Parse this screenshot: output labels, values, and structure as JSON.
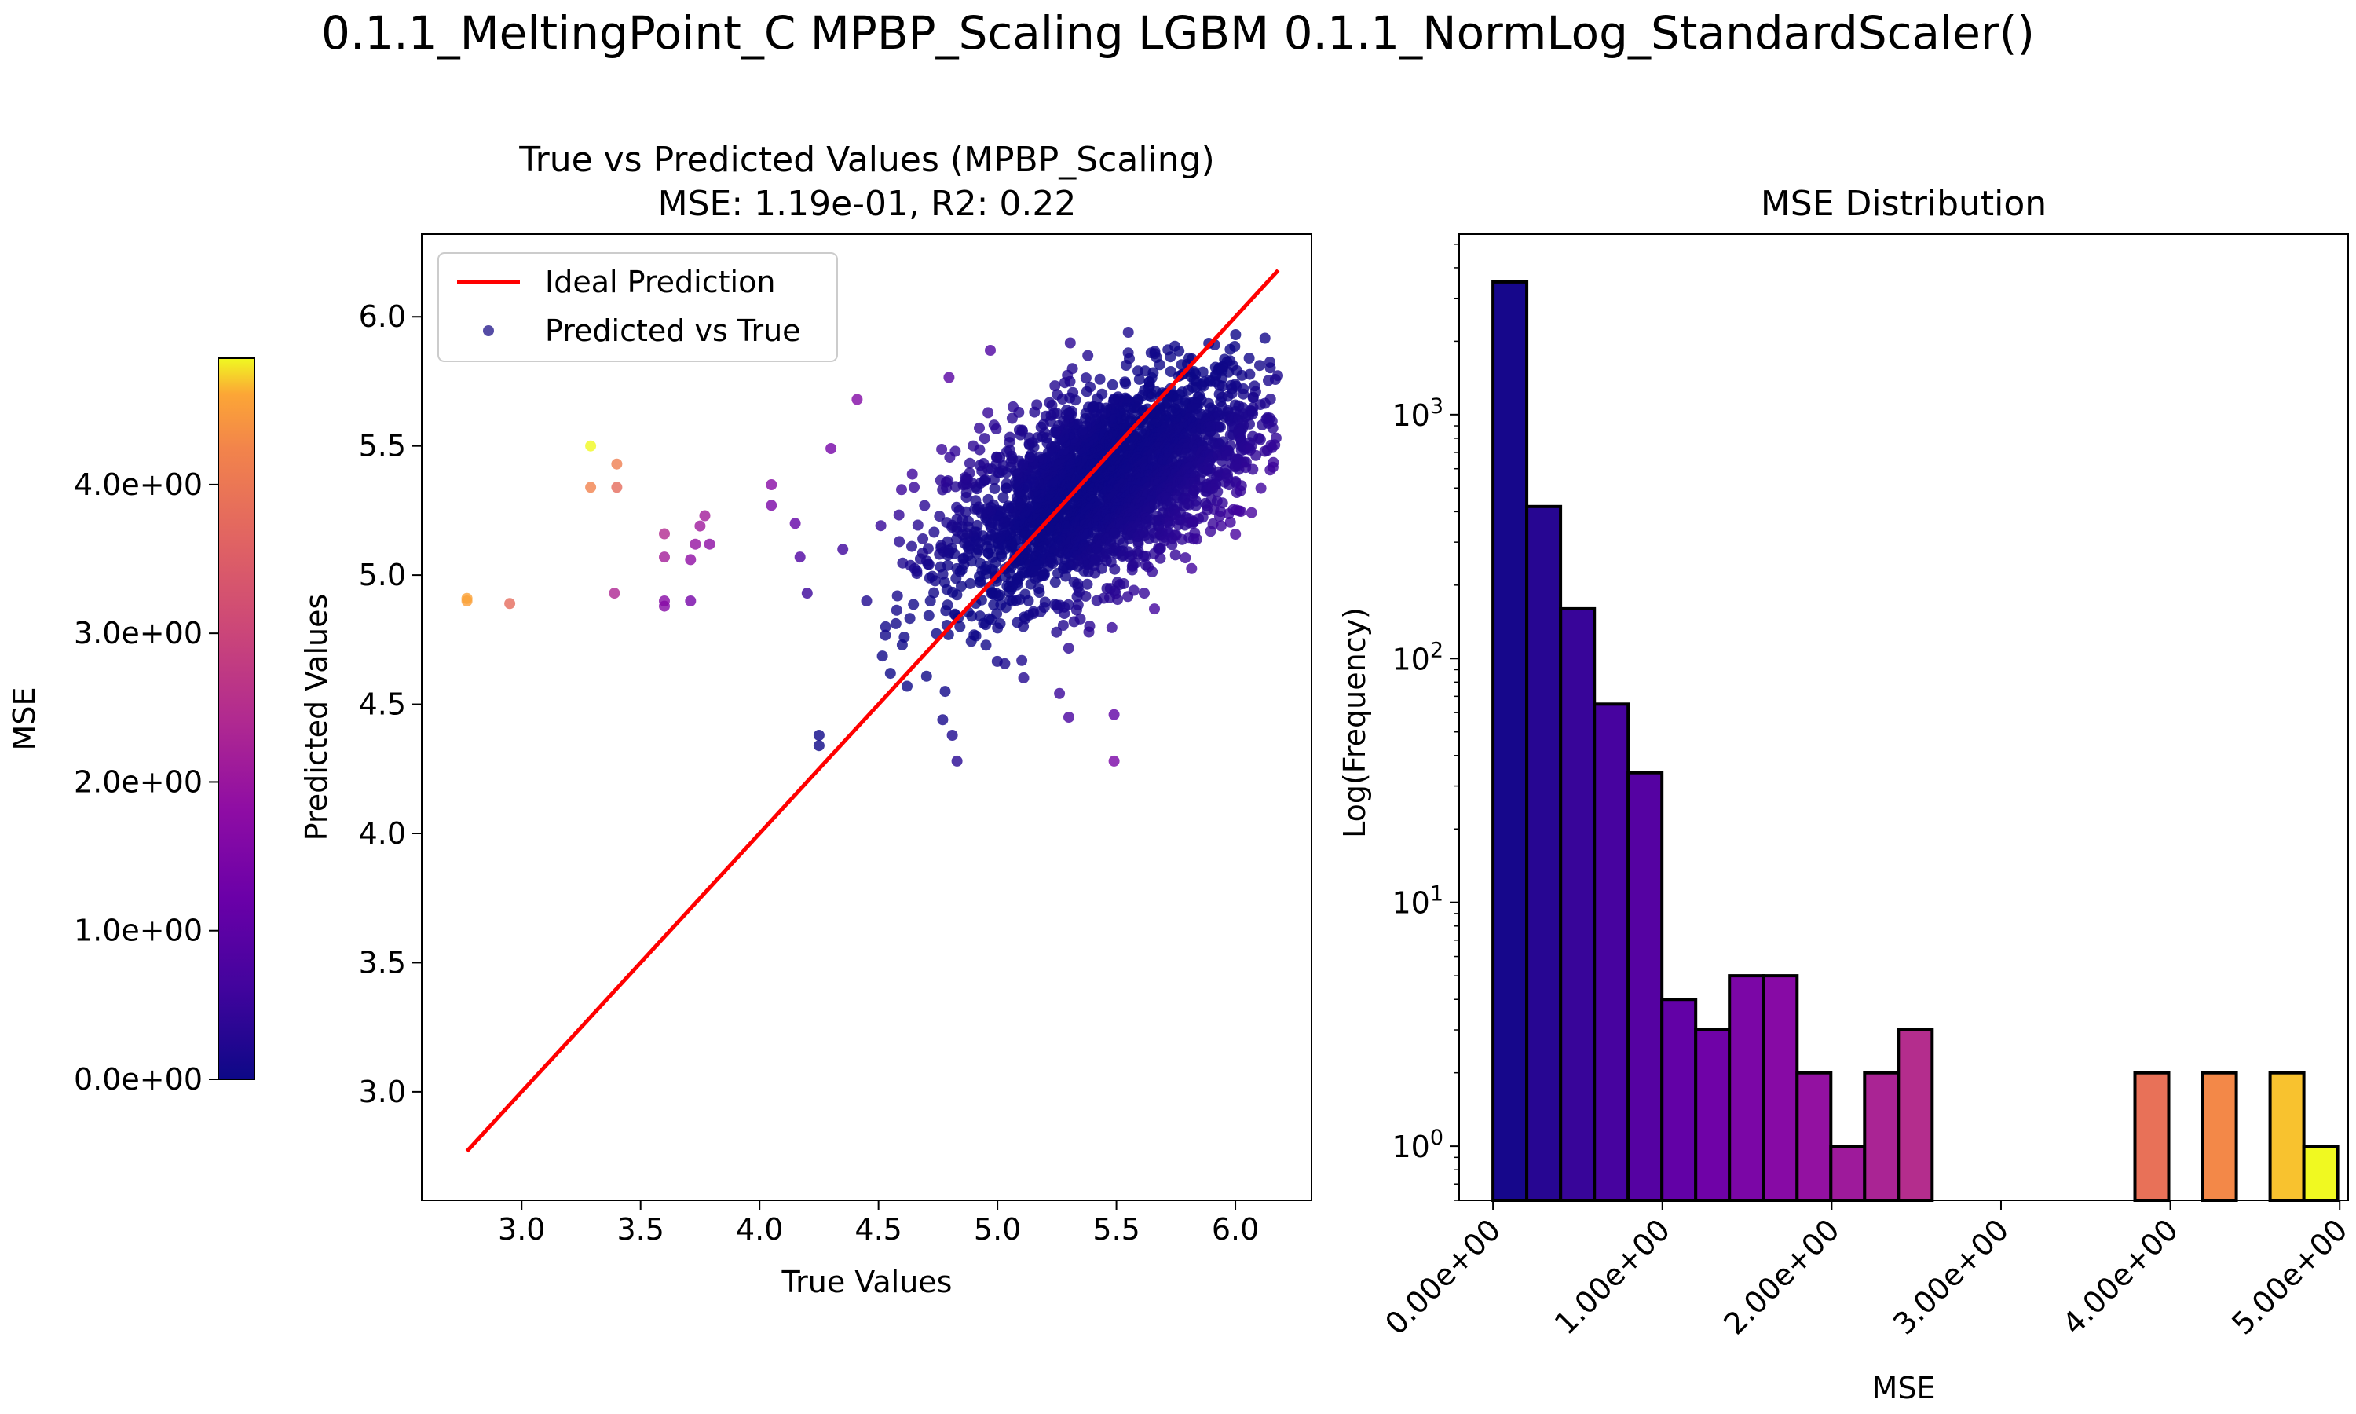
{
  "figure": {
    "suptitle": "0.1.1_MeltingPoint_C MPBP_Scaling LGBM 0.1.1_NormLog_StandardScaler()"
  },
  "colorbar": {
    "label": "MSE",
    "min": 0,
    "max": 4.85,
    "ticks": [
      0,
      1,
      2,
      3,
      4
    ],
    "tick_labels": [
      "0.0e+00",
      "1.0e+00",
      "2.0e+00",
      "3.0e+00",
      "4.0e+00"
    ],
    "colormap": "plasma"
  },
  "chart_data": [
    {
      "type": "scatter",
      "title_line1": "True vs Predicted Values (MPBP_Scaling)",
      "title_line2": "MSE: 1.19e-01, R2: 0.22",
      "xlabel": "True Values",
      "ylabel": "Predicted Values",
      "xlim": [
        2.58,
        6.32
      ],
      "ylim": [
        2.58,
        6.32
      ],
      "xticks": [
        3.0,
        3.5,
        4.0,
        4.5,
        5.0,
        5.5,
        6.0
      ],
      "xtick_labels": [
        "3.0",
        "3.5",
        "4.0",
        "4.5",
        "5.0",
        "5.5",
        "6.0"
      ],
      "yticks": [
        3.0,
        3.5,
        4.0,
        4.5,
        5.0,
        5.5,
        6.0
      ],
      "ytick_labels": [
        "3.0",
        "3.5",
        "4.0",
        "4.5",
        "5.0",
        "5.5",
        "6.0"
      ],
      "legend_position": "upper-left",
      "ideal_line": {
        "name": "Ideal Prediction",
        "color": "#ff0000",
        "x": [
          2.77,
          6.18
        ],
        "y": [
          2.77,
          6.18
        ]
      },
      "scatter_name": "Predicted vs True",
      "legend_marker_color": "#2a1f8f",
      "cluster": {
        "x_center": 5.45,
        "y_center": 5.35,
        "x_sd": 0.33,
        "y_sd": 0.22,
        "correlation": 0.55,
        "count": 2600,
        "x_range": [
          4.5,
          6.18
        ],
        "y_range": [
          4.45,
          5.95
        ]
      },
      "points": [
        {
          "x": 2.77,
          "y": 4.91
        },
        {
          "x": 2.77,
          "y": 4.9
        },
        {
          "x": 2.95,
          "y": 4.89
        },
        {
          "x": 3.29,
          "y": 5.5
        },
        {
          "x": 3.29,
          "y": 5.34
        },
        {
          "x": 3.4,
          "y": 5.43
        },
        {
          "x": 3.4,
          "y": 5.34
        },
        {
          "x": 3.39,
          "y": 4.93
        },
        {
          "x": 3.6,
          "y": 5.16
        },
        {
          "x": 3.6,
          "y": 5.07
        },
        {
          "x": 3.6,
          "y": 4.9
        },
        {
          "x": 3.6,
          "y": 4.88
        },
        {
          "x": 3.71,
          "y": 4.9
        },
        {
          "x": 3.71,
          "y": 5.06
        },
        {
          "x": 3.73,
          "y": 5.12
        },
        {
          "x": 3.77,
          "y": 5.23
        },
        {
          "x": 3.75,
          "y": 5.19
        },
        {
          "x": 3.79,
          "y": 5.12
        },
        {
          "x": 4.05,
          "y": 5.35
        },
        {
          "x": 4.05,
          "y": 5.27
        },
        {
          "x": 4.15,
          "y": 5.2
        },
        {
          "x": 4.2,
          "y": 4.93
        },
        {
          "x": 4.17,
          "y": 5.07
        },
        {
          "x": 4.25,
          "y": 4.38
        },
        {
          "x": 4.25,
          "y": 4.34
        },
        {
          "x": 4.3,
          "y": 5.49
        },
        {
          "x": 4.41,
          "y": 5.68
        },
        {
          "x": 4.45,
          "y": 4.9
        },
        {
          "x": 4.55,
          "y": 4.62
        },
        {
          "x": 4.62,
          "y": 4.57
        },
        {
          "x": 4.78,
          "y": 4.55
        },
        {
          "x": 4.77,
          "y": 4.44
        },
        {
          "x": 4.83,
          "y": 4.28
        },
        {
          "x": 4.81,
          "y": 4.38
        },
        {
          "x": 4.97,
          "y": 5.87
        },
        {
          "x": 5.3,
          "y": 4.45
        },
        {
          "x": 5.31,
          "y": 5.62
        },
        {
          "x": 5.49,
          "y": 4.46
        },
        {
          "x": 5.49,
          "y": 4.28
        },
        {
          "x": 5.38,
          "y": 5.85
        },
        {
          "x": 5.55,
          "y": 5.94
        },
        {
          "x": 4.85,
          "y": 5.02
        },
        {
          "x": 4.6,
          "y": 4.73
        },
        {
          "x": 4.53,
          "y": 4.8
        },
        {
          "x": 4.35,
          "y": 5.1
        }
      ]
    },
    {
      "type": "bar",
      "title": "MSE Distribution",
      "xlabel": "MSE",
      "ylabel": "Log(Frequency)",
      "yscale": "log",
      "xlim": [
        -0.2,
        5.05
      ],
      "ylim": [
        0.6,
        5500
      ],
      "bin_width": 0.1995,
      "bins_start": [
        0.0,
        0.1995,
        0.399,
        0.5985,
        0.798,
        0.9975,
        1.197,
        1.3965,
        1.596,
        1.7955,
        1.995,
        2.1945,
        2.394,
        3.791,
        4.19,
        4.589,
        4.7885
      ],
      "values": [
        3500,
        420,
        160,
        65,
        34,
        4,
        3,
        5,
        5,
        2,
        1,
        2,
        3,
        2,
        2,
        2,
        1
      ],
      "xticks": [
        0,
        1,
        2,
        3,
        4,
        5
      ],
      "xtick_labels": [
        "0.00e+00",
        "1.00e+00",
        "2.00e+00",
        "3.00e+00",
        "4.00e+00",
        "5.00e+00"
      ],
      "yticks": [
        1,
        10,
        100,
        1000
      ],
      "ytick_base": "10",
      "ytick_exponents": [
        "0",
        "1",
        "2",
        "3"
      ]
    }
  ]
}
